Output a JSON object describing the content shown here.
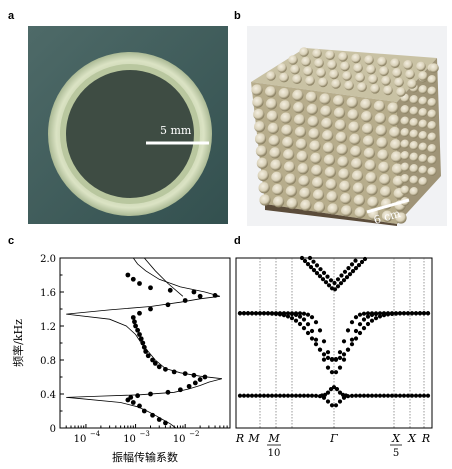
{
  "panels": {
    "a": {
      "label": "a",
      "scale_text": "5 mm"
    },
    "b": {
      "label": "b",
      "scale_text": "6 cm"
    },
    "c": {
      "label": "c",
      "ylabel": "频率/kHz",
      "xlabel": "振幅传输系数",
      "yticks": [
        "0",
        "0.4",
        "0.8",
        "1.2",
        "1.6",
        "2.0"
      ],
      "xticks": [
        {
          "base": "10",
          "exp": "−4"
        },
        {
          "base": "10",
          "exp": "−3"
        },
        {
          "base": "10",
          "exp": "−2"
        }
      ]
    },
    "d": {
      "label": "d",
      "xticks": [
        "R",
        "M",
        "M",
        "Γ",
        "X",
        "X",
        "R"
      ],
      "frac_left_den": "10",
      "frac_right_den": "5"
    }
  },
  "chart_data": [
    {
      "type": "scatter",
      "panel": "c",
      "xscale": "log",
      "xlim": [
        3e-05,
        0.08
      ],
      "ylim": [
        0,
        2.0
      ],
      "series": [
        {
          "kind": "points",
          "points": [
            [
              0.004,
              0.06
            ],
            [
              0.003,
              0.1
            ],
            [
              0.0022,
              0.15
            ],
            [
              0.0015,
              0.2
            ],
            [
              0.0012,
              0.26
            ],
            [
              0.0009,
              0.3
            ],
            [
              0.0007,
              0.33
            ],
            [
              0.0008,
              0.36
            ],
            [
              0.0011,
              0.38
            ],
            [
              0.002,
              0.4
            ],
            [
              0.0045,
              0.42
            ],
            [
              0.008,
              0.45
            ],
            [
              0.012,
              0.49
            ],
            [
              0.016,
              0.53
            ],
            [
              0.02,
              0.57
            ],
            [
              0.025,
              0.6
            ],
            [
              0.015,
              0.62
            ],
            [
              0.01,
              0.64
            ],
            [
              0.006,
              0.66
            ],
            [
              0.004,
              0.69
            ],
            [
              0.003,
              0.72
            ],
            [
              0.0025,
              0.76
            ],
            [
              0.0022,
              0.8
            ],
            [
              0.0018,
              0.85
            ],
            [
              0.0016,
              0.9
            ],
            [
              0.0015,
              0.95
            ],
            [
              0.0014,
              1.0
            ],
            [
              0.0013,
              1.05
            ],
            [
              0.0012,
              1.1
            ],
            [
              0.0011,
              1.15
            ],
            [
              0.001,
              1.2
            ],
            [
              0.00095,
              1.25
            ],
            [
              0.0009,
              1.3
            ],
            [
              0.0012,
              1.35
            ],
            [
              0.002,
              1.4
            ],
            [
              0.0045,
              1.45
            ],
            [
              0.01,
              1.5
            ],
            [
              0.02,
              1.55
            ],
            [
              0.04,
              1.56
            ],
            [
              0.015,
              1.6
            ],
            [
              0.005,
              1.62
            ],
            [
              0.002,
              1.65
            ],
            [
              0.0012,
              1.7
            ],
            [
              0.0009,
              1.75
            ],
            [
              0.0007,
              1.8
            ]
          ]
        },
        {
          "kind": "line",
          "points": [
            [
              0.0065,
              0.0
            ],
            [
              0.005,
              0.05
            ],
            [
              0.0035,
              0.1
            ],
            [
              0.0025,
              0.15
            ],
            [
              0.0017,
              0.2
            ],
            [
              0.0011,
              0.25
            ],
            [
              0.0005,
              0.3
            ],
            [
              8e-05,
              0.345
            ],
            [
              4e-05,
              0.36
            ],
            [
              0.0002,
              0.375
            ],
            [
              0.0012,
              0.39
            ],
            [
              0.006,
              0.42
            ],
            [
              0.012,
              0.46
            ],
            [
              0.02,
              0.5
            ],
            [
              0.03,
              0.54
            ],
            [
              0.055,
              0.58
            ],
            [
              0.02,
              0.61
            ],
            [
              0.008,
              0.65
            ],
            [
              0.004,
              0.7
            ],
            [
              0.0025,
              0.8
            ],
            [
              0.0018,
              0.9
            ],
            [
              0.0013,
              1.0
            ],
            [
              0.001,
              1.1
            ],
            [
              0.00065,
              1.2
            ],
            [
              0.0003,
              1.28
            ],
            [
              4e-05,
              1.34
            ],
            [
              0.0003,
              1.39
            ],
            [
              0.002,
              1.43
            ],
            [
              0.008,
              1.48
            ],
            [
              0.02,
              1.52
            ],
            [
              0.05,
              1.55
            ],
            [
              0.025,
              1.6
            ],
            [
              0.008,
              1.66
            ],
            [
              0.003,
              1.75
            ],
            [
              0.0016,
              1.85
            ],
            [
              0.0011,
              1.93
            ],
            [
              0.0009,
              2.0
            ]
          ]
        },
        {
          "kind": "line",
          "points": [
            [
              0.009,
              1.55
            ],
            [
              0.0045,
              1.7
            ],
            [
              0.0025,
              1.85
            ],
            [
              0.0015,
              2.0
            ]
          ]
        }
      ]
    },
    {
      "type": "scatter",
      "panel": "d",
      "ylim": [
        0,
        2.0
      ],
      "series": [
        {
          "name": "band_low",
          "y": 0.35,
          "dip": 0.12,
          "wells": [
            -0.25,
            0.25
          ]
        },
        {
          "name": "band_mid_a",
          "y": 1.35,
          "dip": 0.55,
          "wells": [
            0.45,
            0.75
          ]
        },
        {
          "name": "band_mid_b",
          "y": 1.35,
          "dip": 0.7,
          "wells": [
            0.35,
            0.55
          ]
        },
        {
          "name": "band_top",
          "y": 1.6,
          "top": 2.0
        }
      ]
    }
  ]
}
